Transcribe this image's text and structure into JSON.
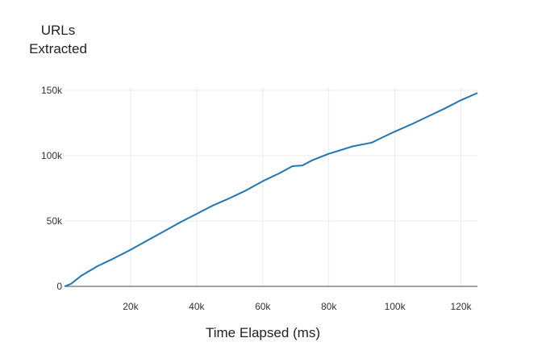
{
  "chart_data": {
    "type": "line",
    "title": "",
    "ylabel_lines": [
      "URLs",
      "Extracted"
    ],
    "xlabel": "Time Elapsed (ms)",
    "xlim": [
      0,
      125000
    ],
    "ylim": [
      0,
      150000
    ],
    "xticks": [
      20000,
      40000,
      60000,
      80000,
      100000,
      120000
    ],
    "xtick_labels": [
      "20k",
      "40k",
      "60k",
      "80k",
      "100k",
      "120k"
    ],
    "yticks": [
      0,
      50000,
      100000,
      150000
    ],
    "ytick_labels": [
      "0",
      "50k",
      "100k",
      "150k"
    ],
    "grid": true,
    "line_color": "#1f77b4",
    "series": [
      {
        "x": [
          0,
          2000,
          5000,
          10000,
          15000,
          20000,
          25000,
          30000,
          35000,
          40000,
          45000,
          50000,
          55000,
          60000,
          65000,
          69000,
          72000,
          75000,
          80000,
          82000,
          87000,
          93000,
          95000,
          100000,
          105000,
          110000,
          115000,
          120000,
          125000
        ],
        "y": [
          0,
          2000,
          8000,
          15500,
          21500,
          28000,
          35000,
          42000,
          49000,
          55500,
          62000,
          67500,
          73500,
          80500,
          86500,
          92000,
          92500,
          96500,
          101500,
          103000,
          107000,
          110000,
          112500,
          118500,
          124000,
          130000,
          136000,
          142500,
          148000
        ]
      }
    ]
  }
}
